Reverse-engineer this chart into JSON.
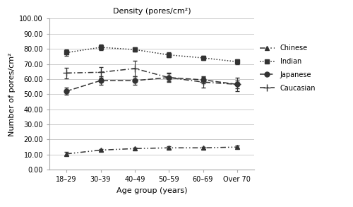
{
  "title": "Density (pores/cm²)",
  "xlabel": "Age group (years)",
  "ylabel": "Number of pores/cm²",
  "x_labels": [
    "18–29",
    "30–39",
    "40–49",
    "50–59",
    "60–69",
    "Over 70"
  ],
  "ylim": [
    0,
    100
  ],
  "yticks": [
    0,
    10,
    20,
    30,
    40,
    50,
    60,
    70,
    80,
    90,
    100
  ],
  "ytick_labels": [
    "0.00",
    "10.00",
    "20.00",
    "30.00",
    "40.00",
    "50.00",
    "60.00",
    "70.00",
    "80.00",
    "90.00",
    "100.00"
  ],
  "Chinese": {
    "y": [
      10.5,
      13.0,
      14.0,
      14.5,
      14.5,
      15.0
    ],
    "yerr": [
      1.2,
      0.8,
      0.8,
      1.0,
      0.8,
      1.0
    ],
    "label": "Chinese"
  },
  "Indian": {
    "y": [
      77.5,
      81.0,
      79.5,
      76.0,
      74.0,
      71.5
    ],
    "yerr": [
      2.0,
      2.0,
      1.5,
      1.5,
      1.5,
      1.5
    ],
    "label": "Indian"
  },
  "Japanese": {
    "y": [
      52.0,
      59.0,
      59.0,
      61.0,
      59.5,
      56.5
    ],
    "yerr": [
      2.5,
      3.0,
      3.0,
      2.5,
      2.5,
      2.5
    ],
    "label": "Japanese"
  },
  "Caucasian": {
    "y": [
      64.0,
      64.5,
      67.0,
      61.0,
      58.0,
      56.5
    ],
    "yerr": [
      3.5,
      3.5,
      5.0,
      3.0,
      3.5,
      4.5
    ],
    "label": "Caucasian"
  },
  "line_color": "#333333",
  "background_color": "#ffffff",
  "grid_color": "#cccccc",
  "title_fontsize": 8,
  "axis_label_fontsize": 8,
  "tick_fontsize": 7,
  "legend_fontsize": 7
}
